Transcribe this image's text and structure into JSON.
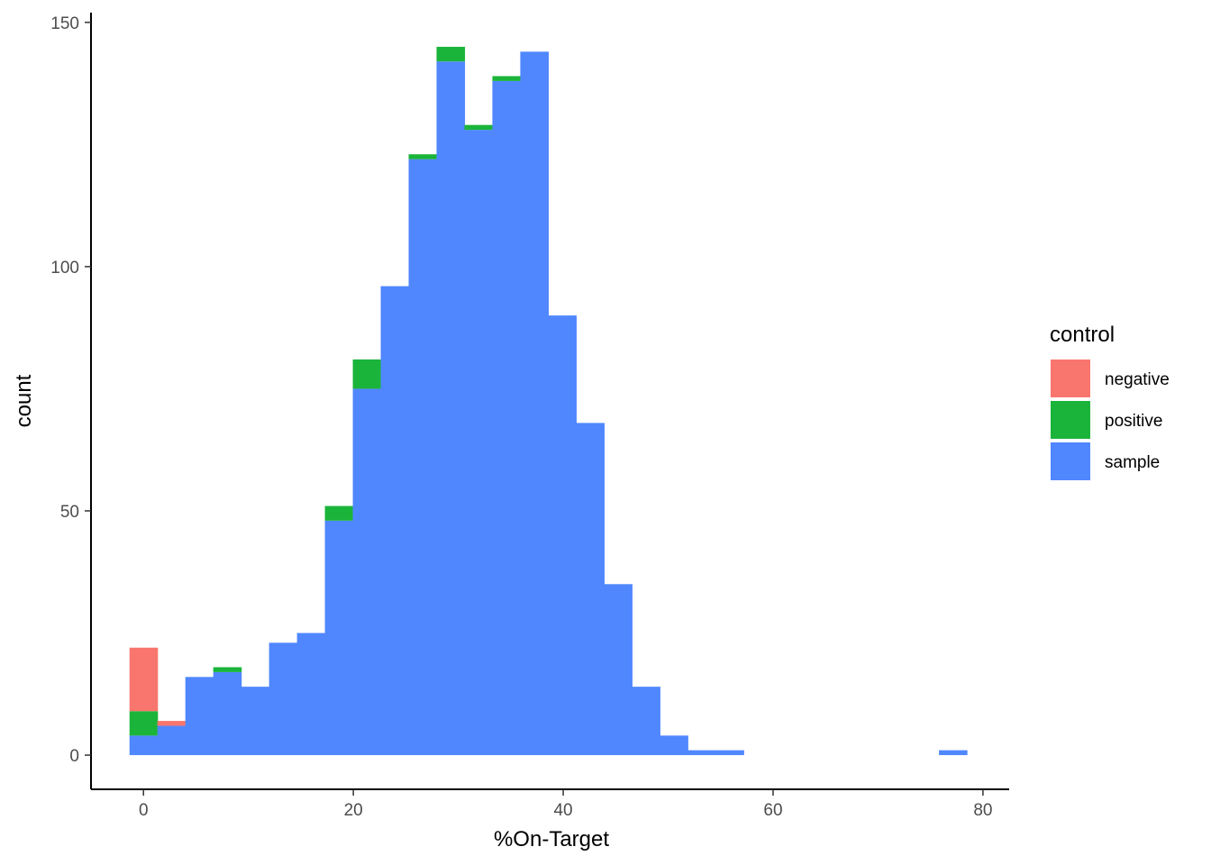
{
  "chart_data": {
    "type": "bar",
    "subtype": "stacked-histogram",
    "xlabel": "%On-Target",
    "ylabel": "count",
    "xlim": [
      -5,
      82.5
    ],
    "ylim": [
      -7,
      152
    ],
    "x_ticks": [
      0,
      20,
      40,
      60,
      80
    ],
    "y_ticks": [
      0,
      50,
      100,
      150
    ],
    "x_tick_labels": [
      "0",
      "20",
      "40",
      "60",
      "80"
    ],
    "y_tick_labels": [
      "0",
      "50",
      "100",
      "150"
    ],
    "bin_width": 2.66,
    "bin_centers": [
      0.0,
      2.66,
      5.32,
      7.98,
      10.64,
      13.3,
      15.96,
      18.62,
      21.28,
      23.94,
      26.6,
      29.26,
      31.92,
      34.58,
      37.24,
      39.9,
      42.56,
      45.22,
      47.88,
      50.54,
      53.2,
      55.86,
      58.52,
      61.18,
      63.84,
      66.5,
      69.16,
      71.82,
      74.48,
      77.14
    ],
    "series": [
      {
        "name": "negative",
        "color": "#F8766D",
        "values": [
          13,
          1,
          0,
          0,
          0,
          0,
          0,
          0,
          0,
          0,
          0,
          0,
          0,
          0,
          0,
          0,
          0,
          0,
          0,
          0,
          0,
          0,
          0,
          0,
          0,
          0,
          0,
          0,
          0,
          0
        ]
      },
      {
        "name": "positive",
        "color": "#1BB43A",
        "values": [
          5,
          0,
          0,
          1,
          0,
          0,
          0,
          3,
          6,
          0,
          1,
          3,
          1,
          1,
          0,
          0,
          0,
          0,
          0,
          0,
          0,
          0,
          0,
          0,
          0,
          0,
          0,
          0,
          0,
          0
        ]
      },
      {
        "name": "sample",
        "color": "#5087FF",
        "values": [
          4,
          6,
          16,
          17,
          14,
          23,
          25,
          48,
          75,
          96,
          122,
          142,
          128,
          138,
          144,
          90,
          68,
          35,
          14,
          4,
          1,
          1,
          0,
          0,
          0,
          0,
          0,
          0,
          0,
          1
        ]
      }
    ],
    "stack_order": [
      "sample",
      "positive",
      "negative"
    ],
    "legend": {
      "title": "control",
      "position": "right",
      "items": [
        "negative",
        "positive",
        "sample"
      ]
    },
    "grid": false
  }
}
